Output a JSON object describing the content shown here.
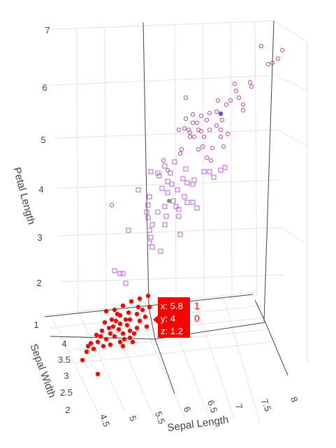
{
  "chart_data": {
    "type": "scatter3d",
    "axes": {
      "x": {
        "title": "Sepal Length",
        "ticks": [
          "4.5",
          "5",
          "5.5",
          "6",
          "6.5",
          "7",
          "7.5",
          "8"
        ]
      },
      "y": {
        "title": "Sepal Width",
        "ticks": [
          "2",
          "2.5",
          "3",
          "3.5",
          "4"
        ]
      },
      "z": {
        "title": "Petal Length",
        "ticks": [
          "1",
          "2",
          "3",
          "4",
          "5",
          "6",
          "7"
        ]
      }
    },
    "series": [
      {
        "color": "#ff0000",
        "marker": "circle-filled",
        "count": 50
      },
      {
        "color": "#b45cd6",
        "marker": "square-open",
        "count": 50
      },
      {
        "color": "#cc4499",
        "marker": "circle-open",
        "count": 50
      }
    ],
    "highlighted_points": [
      {
        "color": "#6a4fcf"
      },
      {
        "color": "#6aa36a"
      }
    ],
    "hover": {
      "lines": [
        "x: 5.8",
        "y: 4",
        "z: 1.2"
      ],
      "side_labels": [
        "1",
        "0"
      ],
      "color": "#ff0000"
    }
  }
}
